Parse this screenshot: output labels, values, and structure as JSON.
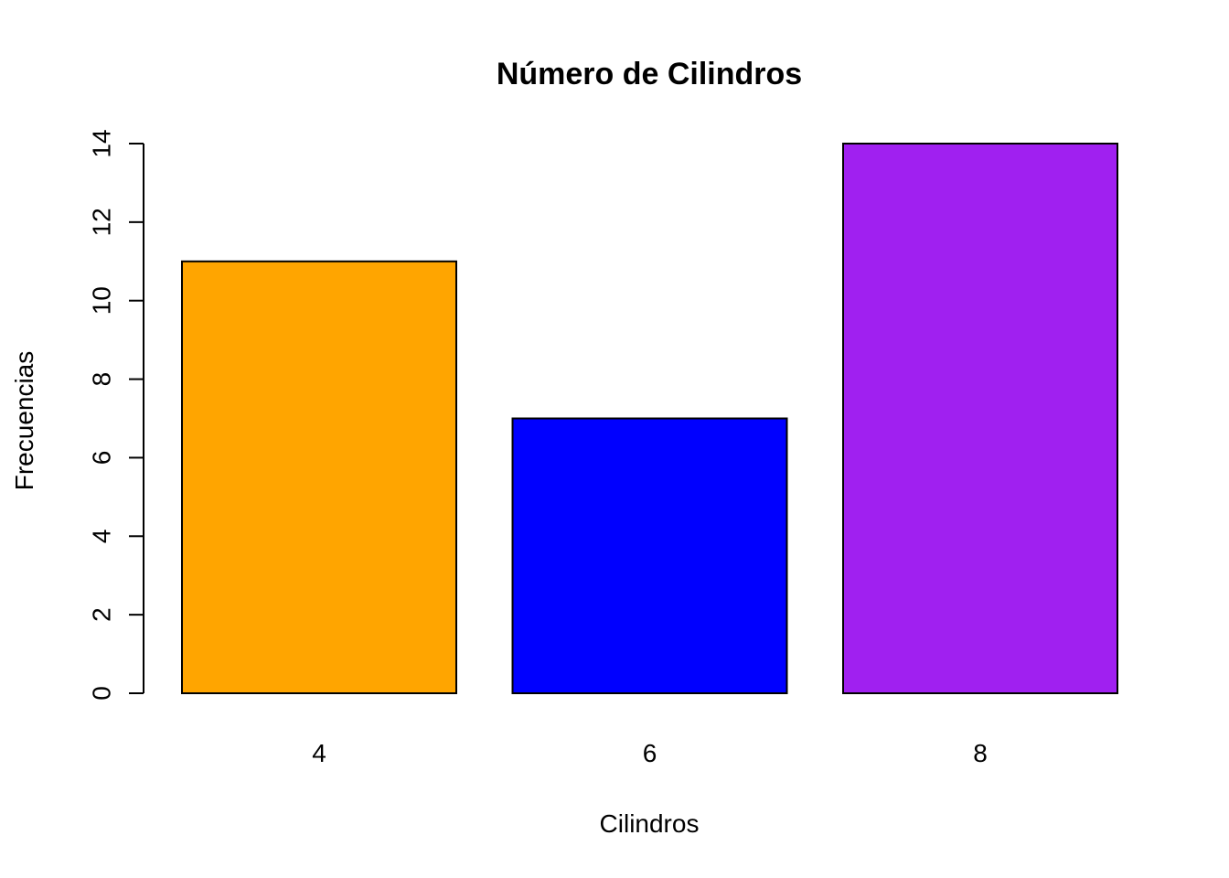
{
  "chart_data": {
    "type": "bar",
    "title": "Número de Cilindros",
    "xlabel": "Cilindros",
    "ylabel": "Frecuencias",
    "categories": [
      "4",
      "6",
      "8"
    ],
    "values": [
      11,
      7,
      14
    ],
    "colors": [
      "#FFA500",
      "#0000FF",
      "#A020F0"
    ],
    "ylim": [
      0,
      14
    ],
    "yticks": [
      0,
      2,
      4,
      6,
      8,
      10,
      12,
      14
    ],
    "ytick_labels": [
      "0",
      "2",
      "4",
      "6",
      "8",
      "10",
      "12",
      "14"
    ],
    "grid": false,
    "legend": "none"
  }
}
